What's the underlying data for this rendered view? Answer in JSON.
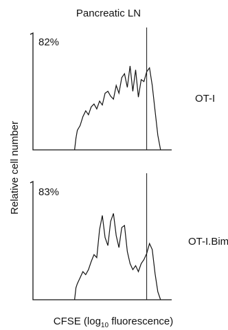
{
  "chart_data": {
    "type": "line",
    "title": "Pancreatic LN",
    "xlabel_main": "CFSE (log",
    "xlabel_sub": "10",
    "xlabel_tail": " fluorescence)",
    "ylabel": "Relative cell number",
    "color": "#111111",
    "panels": [
      {
        "series_name": "OT-I",
        "percent_label": "82%",
        "gate_x": 0.82,
        "x": [
          0.3,
          0.31,
          0.32,
          0.34,
          0.36,
          0.38,
          0.4,
          0.42,
          0.44,
          0.46,
          0.48,
          0.5,
          0.52,
          0.54,
          0.56,
          0.58,
          0.6,
          0.62,
          0.64,
          0.66,
          0.68,
          0.7,
          0.72,
          0.74,
          0.76,
          0.78,
          0.8,
          0.82,
          0.84,
          0.86,
          0.88,
          0.9,
          0.92
        ],
        "values": [
          0.0,
          0.12,
          0.2,
          0.25,
          0.34,
          0.4,
          0.36,
          0.44,
          0.47,
          0.42,
          0.5,
          0.46,
          0.58,
          0.6,
          0.55,
          0.52,
          0.66,
          0.58,
          0.74,
          0.78,
          0.64,
          0.86,
          0.6,
          0.82,
          0.54,
          0.72,
          0.7,
          0.8,
          0.84,
          0.66,
          0.4,
          0.15,
          0.0
        ],
        "ylim": [
          0,
          1
        ]
      },
      {
        "series_name": "OT-I.Bim",
        "percent_label": "83%",
        "gate_x": 0.82,
        "x": [
          0.3,
          0.31,
          0.32,
          0.34,
          0.36,
          0.38,
          0.4,
          0.42,
          0.44,
          0.46,
          0.48,
          0.5,
          0.52,
          0.54,
          0.56,
          0.58,
          0.6,
          0.62,
          0.64,
          0.66,
          0.68,
          0.7,
          0.72,
          0.74,
          0.76,
          0.78,
          0.8,
          0.82,
          0.84,
          0.86,
          0.88,
          0.9,
          0.92
        ],
        "values": [
          0.0,
          0.12,
          0.16,
          0.22,
          0.28,
          0.25,
          0.3,
          0.38,
          0.45,
          0.42,
          0.7,
          0.84,
          0.62,
          0.54,
          0.78,
          0.86,
          0.64,
          0.52,
          0.72,
          0.74,
          0.48,
          0.36,
          0.3,
          0.34,
          0.28,
          0.36,
          0.4,
          0.46,
          0.56,
          0.5,
          0.26,
          0.08,
          0.0
        ],
        "ylim": [
          0,
          1
        ]
      }
    ],
    "xlim": [
      0,
      1
    ]
  }
}
